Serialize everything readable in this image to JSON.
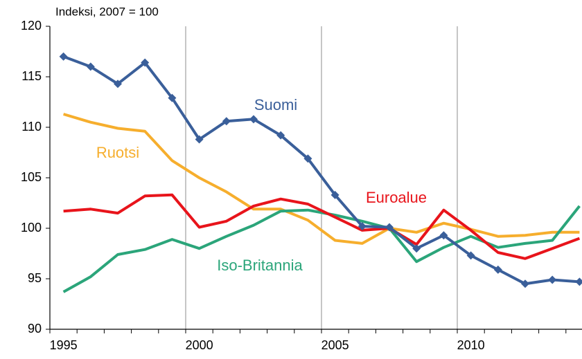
{
  "chart_data": {
    "type": "line",
    "title": "Indeksi, 2007 = 100",
    "categories": [
      "1995",
      null,
      null,
      null,
      null,
      "2000",
      null,
      null,
      null,
      null,
      "2005",
      null,
      null,
      null,
      null,
      "2010",
      null,
      null,
      null,
      null
    ],
    "ylim": [
      90,
      120
    ],
    "yticks": [
      90,
      95,
      100,
      105,
      110,
      115,
      120
    ],
    "xgrid": true,
    "ygrid": false,
    "series": [
      {
        "name": "Suomi",
        "color": "#3a5f9a",
        "marker": "diamond",
        "values": [
          117.0,
          116.0,
          114.3,
          116.4,
          112.9,
          108.8,
          110.6,
          110.8,
          109.2,
          106.9,
          103.3,
          100.2,
          100.1,
          98.0,
          99.3,
          97.3,
          95.9,
          94.5,
          94.9,
          94.7
        ]
      },
      {
        "name": "Ruotsi",
        "color": "#f6ae2d",
        "values": [
          111.3,
          110.5,
          109.9,
          109.6,
          106.7,
          105.0,
          103.6,
          101.9,
          101.9,
          100.8,
          98.8,
          98.5,
          100.0,
          99.6,
          100.5,
          99.9,
          99.2,
          99.3,
          99.6,
          99.6
        ]
      },
      {
        "name": "Euroalue",
        "color": "#e8141b",
        "values": [
          101.7,
          101.9,
          101.5,
          103.2,
          103.3,
          100.1,
          100.7,
          102.2,
          102.9,
          102.4,
          101.1,
          99.8,
          100.0,
          98.4,
          101.8,
          99.8,
          97.6,
          97.0,
          98.0,
          99.0
        ]
      },
      {
        "name": "Iso-Britannia",
        "color": "#2ba57a",
        "values": [
          93.7,
          95.2,
          97.4,
          97.9,
          98.9,
          98.0,
          99.2,
          100.3,
          101.7,
          101.8,
          101.3,
          100.7,
          100.0,
          96.7,
          98.1,
          99.2,
          98.1,
          98.5,
          98.8,
          102.2
        ]
      }
    ]
  }
}
